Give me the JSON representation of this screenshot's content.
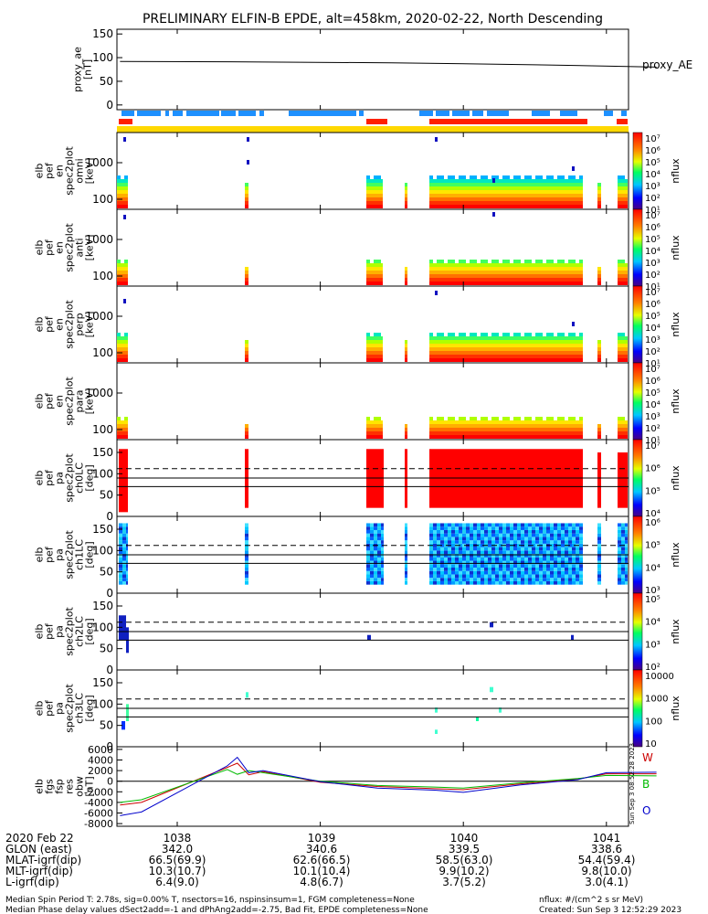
{
  "title": "PRELIMINARY ELFIN-B EPDE, alt=458km, 2020-02-22, North Descending",
  "colors": {
    "blue_bar": "#1e90ff",
    "red_bar": "#ff2000",
    "yellow_bar": "#ffd800",
    "obw_W": "#cc0000",
    "obw_B": "#00bb00",
    "obw_O": "#0000cc"
  },
  "chart_data": [
    {
      "type": "line",
      "panel": "proxy_ae",
      "ylabel": [
        "proxy_ae",
        "[nT]"
      ],
      "legend": "proxy_AE",
      "ylim": [
        -10,
        160
      ],
      "yticks": [
        0,
        50,
        100,
        150
      ],
      "x": [
        1037.6,
        1038.5,
        1039.5,
        1040.5,
        1041.35
      ],
      "values": [
        92,
        91,
        89,
        85,
        80
      ]
    },
    {
      "type": "heatmap",
      "panel": "omni",
      "ylabel": [
        "elb",
        "pef",
        "en",
        "spec2plot",
        "omni",
        "[keV]"
      ],
      "ytick_labels": [
        "1000",
        "100"
      ],
      "colorbar_ticks": [
        "10⁷",
        "10⁶",
        "10⁵",
        "10⁴",
        "10³",
        "10²",
        "10¹"
      ],
      "colorbar_label": "nflux"
    },
    {
      "type": "heatmap",
      "panel": "anti",
      "ylabel": [
        "elb",
        "pef",
        "en",
        "spec2plot",
        "anti",
        "[keV]"
      ],
      "ytick_labels": [
        "1000",
        "100"
      ],
      "colorbar_ticks": [
        "10⁷",
        "10⁶",
        "10⁵",
        "10⁴",
        "10³",
        "10²",
        "10¹"
      ],
      "colorbar_label": "nflux"
    },
    {
      "type": "heatmap",
      "panel": "perp",
      "ylabel": [
        "elb",
        "pef",
        "en",
        "spec2plot",
        "perp",
        "[keV]"
      ],
      "ytick_labels": [
        "1000",
        "100"
      ],
      "colorbar_ticks": [
        "10⁷",
        "10⁶",
        "10⁵",
        "10⁴",
        "10³",
        "10²",
        "10¹"
      ],
      "colorbar_label": "nflux"
    },
    {
      "type": "heatmap",
      "panel": "para",
      "ylabel": [
        "elb",
        "pef",
        "en",
        "spec2plot",
        "para",
        "[keV]"
      ],
      "ytick_labels": [
        "1000",
        "100"
      ],
      "colorbar_ticks": [
        "10⁷",
        "10⁶",
        "10⁵",
        "10⁴",
        "10³",
        "10²",
        "10¹"
      ],
      "colorbar_label": "nflux"
    },
    {
      "type": "heatmap",
      "panel": "ch0LC",
      "ylabel": [
        "elb",
        "pef",
        "pa",
        "spec2plot",
        "ch0LC",
        "[deg]"
      ],
      "yticks": [
        0,
        50,
        100,
        150
      ],
      "ylim": [
        0,
        180
      ],
      "lines": {
        "solid": [
          70,
          90
        ],
        "dashed": [
          112
        ]
      },
      "colorbar_ticks": [
        "10⁷",
        "10⁶",
        "10⁵",
        "10⁴"
      ],
      "colorbar_label": "nflux"
    },
    {
      "type": "heatmap",
      "panel": "ch1LC",
      "ylabel": [
        "elb",
        "pef",
        "pa",
        "spec2plot",
        "ch1LC",
        "[deg]"
      ],
      "yticks": [
        0,
        50,
        100,
        150
      ],
      "ylim": [
        0,
        180
      ],
      "lines": {
        "solid": [
          70,
          90
        ],
        "dashed": [
          112
        ]
      },
      "colorbar_ticks": [
        "10⁶",
        "10⁵",
        "10⁴",
        "10³"
      ],
      "colorbar_label": "nflux"
    },
    {
      "type": "heatmap",
      "panel": "ch2LC",
      "ylabel": [
        "elb",
        "pef",
        "pa",
        "spec2plot",
        "ch2LC",
        "[deg]"
      ],
      "yticks": [
        0,
        50,
        100,
        150
      ],
      "ylim": [
        0,
        180
      ],
      "lines": {
        "solid": [
          70,
          90
        ],
        "dashed": [
          112
        ]
      },
      "colorbar_ticks": [
        "10⁵",
        "10⁴",
        "10³",
        "10²"
      ],
      "colorbar_label": "nflux"
    },
    {
      "type": "heatmap",
      "panel": "ch3LC",
      "ylabel": [
        "elb",
        "pef",
        "pa",
        "spec2plot",
        "ch3LC",
        "[deg]"
      ],
      "yticks": [
        0,
        50,
        100,
        150
      ],
      "ylim": [
        0,
        180
      ],
      "lines": {
        "solid": [
          70,
          90
        ],
        "dashed": [
          112
        ]
      },
      "colorbar_ticks": [
        "10000",
        "1000",
        "100",
        "10"
      ],
      "colorbar_label": "nflux"
    },
    {
      "type": "line",
      "panel": "obw",
      "ylabel": [
        "elb",
        "fgs",
        "fsp",
        "res",
        "obw",
        "[nT]"
      ],
      "ytick_labels": [
        "6000",
        "4000",
        "2000",
        "0",
        "-2000",
        "-4000",
        "-6000",
        "-8000"
      ],
      "ylim": [
        -8500,
        6500
      ],
      "legend": [
        "W",
        "B",
        "O"
      ],
      "x": [
        1037.6,
        1037.75,
        1038.35,
        1038.42,
        1038.5,
        1038.6,
        1039.0,
        1039.4,
        1039.8,
        1040.0,
        1040.4,
        1040.8,
        1041.0,
        1041.35
      ],
      "series": [
        {
          "name": "W",
          "values": [
            -4500,
            -4000,
            2600,
            3400,
            1200,
            1800,
            -200,
            -1000,
            -1400,
            -1600,
            -500,
            400,
            1400,
            1400
          ]
        },
        {
          "name": "B",
          "values": [
            -4000,
            -3500,
            2200,
            1300,
            2000,
            1600,
            0,
            -800,
            -1100,
            -1300,
            -300,
            500,
            1100,
            1000
          ]
        },
        {
          "name": "O",
          "values": [
            -6500,
            -5800,
            2900,
            4500,
            1600,
            2000,
            -100,
            -1300,
            -1700,
            -2100,
            -700,
            300,
            1600,
            1700
          ]
        }
      ]
    }
  ],
  "time_axis": {
    "date": "2020 Feb 22",
    "ticks": [
      "1038",
      "1039",
      "1040",
      "1041"
    ],
    "rows": [
      {
        "label": "GLON (east)",
        "values": [
          "342.0",
          "340.6",
          "339.5",
          "338.6"
        ]
      },
      {
        "label": "MLAT-igrf(dip)",
        "values": [
          "66.5(69.9)",
          "62.6(66.5)",
          "58.5(63.0)",
          "54.4(59.4)"
        ]
      },
      {
        "label": "MLT-igrf(dip)",
        "values": [
          "10.3(10.7)",
          "10.1(10.4)",
          "9.9(10.2)",
          "9.8(10.0)"
        ]
      },
      {
        "label": "L-igrf(dip)",
        "values": [
          "6.4(9.0)",
          "4.8(6.7)",
          "3.7(5.2)",
          "3.0(4.1)"
        ]
      }
    ]
  },
  "footer": {
    "left1": "Median Spin Period T: 2.78s, sig=0.00% T, nsectors=16, nspinsinsum=1, FGM completeness=None",
    "left2": "Median Phase delay values dSect2add=-1 and dPhAng2add=-2.75, Bad Fit, EPDE completeness=None",
    "right1": "nflux: #/(cm^2 s sr MeV)",
    "right2": "Created: Sun Sep  3 12:52:29 2023",
    "side_stamp": "Sun Sep  3 08:52:28 2023"
  }
}
